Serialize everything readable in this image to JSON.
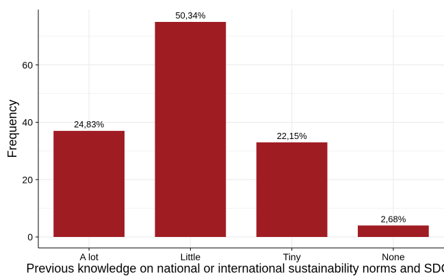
{
  "chart_data": {
    "type": "bar",
    "categories": [
      "A lot",
      "Little",
      "Tiny",
      "None"
    ],
    "values": [
      37,
      75,
      33,
      4
    ],
    "data_labels": [
      "24,83%",
      "50,34%",
      "22,15%",
      "2,68%"
    ],
    "title": "",
    "xlabel": "Previous knowledge on national or international sustainability norms and SDGs",
    "ylabel": "Frequency",
    "ylim": [
      0,
      80
    ],
    "yticks": [
      0,
      20,
      40,
      60
    ],
    "grid": true,
    "bar_color": "#a01c23"
  }
}
